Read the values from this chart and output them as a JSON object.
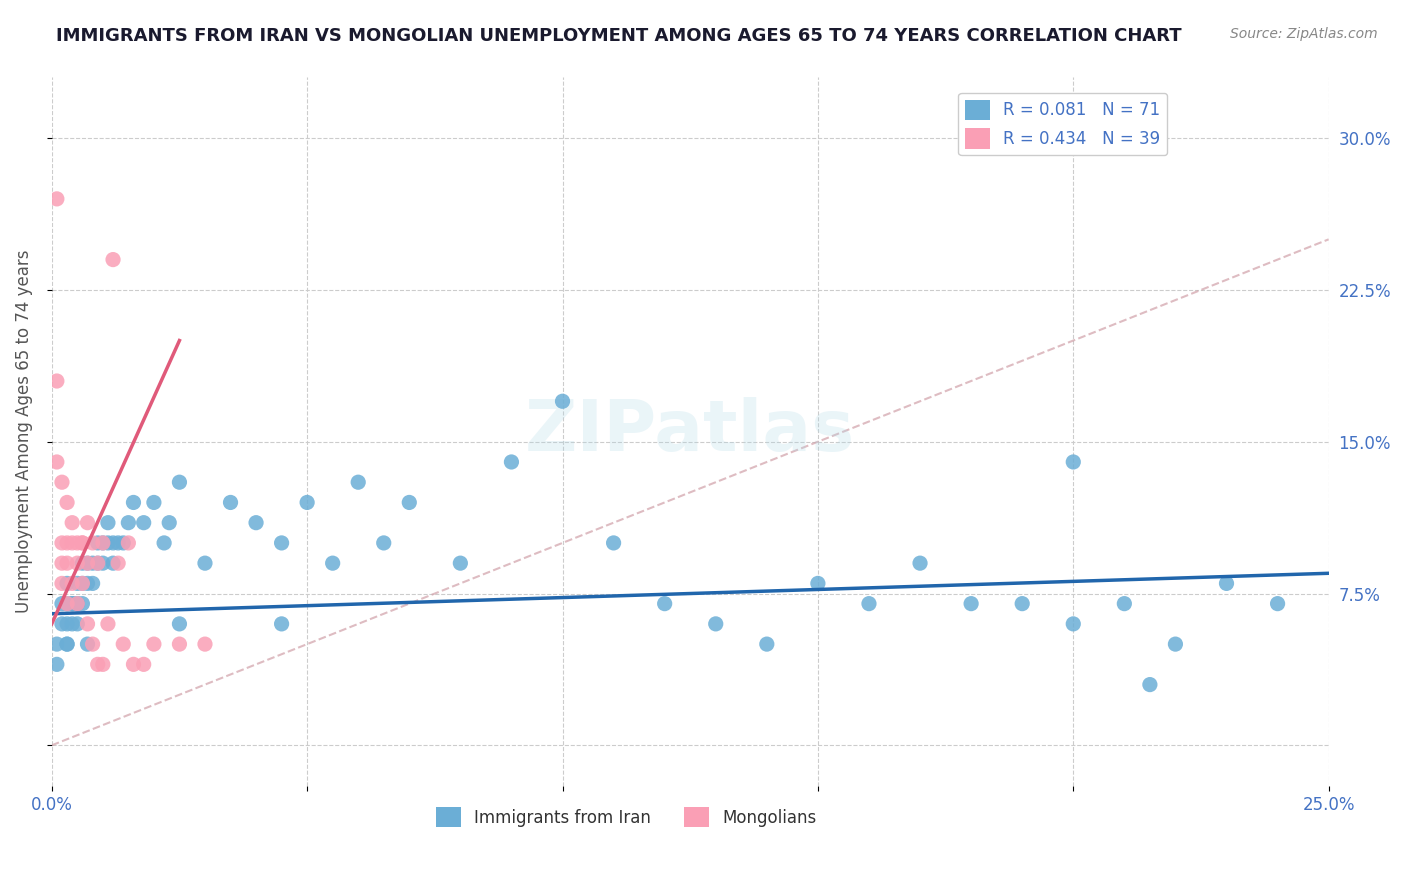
{
  "title": "IMMIGRANTS FROM IRAN VS MONGOLIAN UNEMPLOYMENT AMONG AGES 65 TO 74 YEARS CORRELATION CHART",
  "source": "Source: ZipAtlas.com",
  "xlabel": "",
  "ylabel": "Unemployment Among Ages 65 to 74 years",
  "xlim": [
    0.0,
    0.25
  ],
  "ylim": [
    -0.02,
    0.33
  ],
  "xticks": [
    0.0,
    0.05,
    0.1,
    0.15,
    0.2,
    0.25
  ],
  "xtick_labels": [
    "0.0%",
    "",
    "",
    "",
    "",
    "25.0%"
  ],
  "yticks": [
    0.0,
    0.075,
    0.15,
    0.225,
    0.3
  ],
  "ytick_labels": [
    "",
    "7.5%",
    "15.0%",
    "22.5%",
    "30.0%"
  ],
  "legend_r1": "R = 0.081",
  "legend_n1": "N = 71",
  "legend_r2": "R = 0.434",
  "legend_n2": "N = 39",
  "color_blue": "#6baed6",
  "color_pink": "#fa9fb5",
  "color_line_blue": "#2166ac",
  "color_line_pink": "#e05a7a",
  "color_line_diag": "#d0a0a8",
  "watermark": "ZIPatlas",
  "background_color": "#ffffff",
  "grid_color": "#cccccc",
  "title_color": "#1a1a2e",
  "axis_label_color": "#4472c4",
  "iran_x": [
    0.001,
    0.002,
    0.002,
    0.003,
    0.003,
    0.003,
    0.003,
    0.004,
    0.004,
    0.004,
    0.005,
    0.005,
    0.005,
    0.005,
    0.006,
    0.006,
    0.006,
    0.007,
    0.007,
    0.008,
    0.008,
    0.009,
    0.009,
    0.01,
    0.01,
    0.011,
    0.011,
    0.012,
    0.012,
    0.013,
    0.015,
    0.016,
    0.018,
    0.02,
    0.022,
    0.023,
    0.025,
    0.03,
    0.035,
    0.04,
    0.045,
    0.05,
    0.055,
    0.06,
    0.065,
    0.07,
    0.08,
    0.09,
    0.1,
    0.11,
    0.12,
    0.13,
    0.14,
    0.15,
    0.16,
    0.17,
    0.18,
    0.19,
    0.2,
    0.21,
    0.22,
    0.23,
    0.24,
    0.001,
    0.003,
    0.007,
    0.014,
    0.025,
    0.045,
    0.2,
    0.215
  ],
  "iran_y": [
    0.05,
    0.06,
    0.07,
    0.06,
    0.07,
    0.08,
    0.05,
    0.07,
    0.06,
    0.07,
    0.07,
    0.06,
    0.08,
    0.07,
    0.08,
    0.09,
    0.07,
    0.08,
    0.09,
    0.08,
    0.09,
    0.09,
    0.1,
    0.09,
    0.1,
    0.1,
    0.11,
    0.09,
    0.1,
    0.1,
    0.11,
    0.12,
    0.11,
    0.12,
    0.1,
    0.11,
    0.13,
    0.09,
    0.12,
    0.11,
    0.1,
    0.12,
    0.09,
    0.13,
    0.1,
    0.12,
    0.09,
    0.14,
    0.17,
    0.1,
    0.07,
    0.06,
    0.05,
    0.08,
    0.07,
    0.09,
    0.07,
    0.07,
    0.06,
    0.07,
    0.05,
    0.08,
    0.07,
    0.04,
    0.05,
    0.05,
    0.1,
    0.06,
    0.06,
    0.14,
    0.03
  ],
  "mongolian_x": [
    0.001,
    0.001,
    0.001,
    0.002,
    0.002,
    0.002,
    0.002,
    0.003,
    0.003,
    0.003,
    0.003,
    0.004,
    0.004,
    0.004,
    0.005,
    0.005,
    0.005,
    0.006,
    0.006,
    0.006,
    0.007,
    0.007,
    0.007,
    0.008,
    0.008,
    0.009,
    0.009,
    0.01,
    0.01,
    0.011,
    0.012,
    0.013,
    0.014,
    0.015,
    0.016,
    0.018,
    0.02,
    0.025,
    0.03
  ],
  "mongolian_y": [
    0.27,
    0.18,
    0.14,
    0.13,
    0.1,
    0.09,
    0.08,
    0.12,
    0.1,
    0.09,
    0.07,
    0.11,
    0.1,
    0.08,
    0.1,
    0.09,
    0.07,
    0.1,
    0.1,
    0.08,
    0.11,
    0.09,
    0.06,
    0.1,
    0.05,
    0.09,
    0.04,
    0.1,
    0.04,
    0.06,
    0.24,
    0.09,
    0.05,
    0.1,
    0.04,
    0.04,
    0.05,
    0.05,
    0.05
  ]
}
